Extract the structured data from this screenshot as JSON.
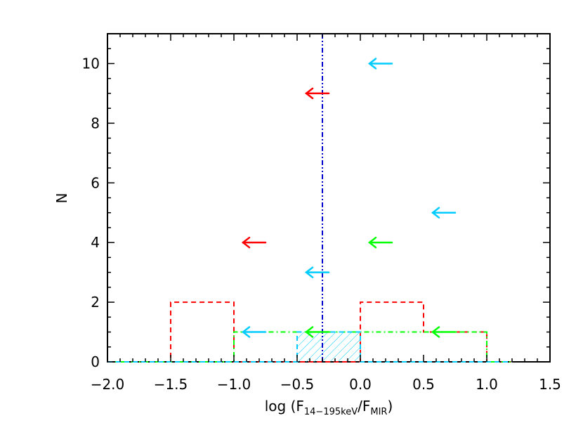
{
  "chart_data": {
    "type": "histogram",
    "title": "",
    "xlabel": {
      "prefix": "log (F",
      "numerator_sub": "14−195keV",
      "divider": "/F",
      "denominator_sub": "MIR",
      "suffix": ")"
    },
    "ylabel": "N",
    "xlim": [
      -2.0,
      1.5
    ],
    "ylim": [
      0,
      11
    ],
    "xticks": [
      -2.0,
      -1.5,
      -1.0,
      -0.5,
      0.0,
      0.5,
      1.0,
      1.5
    ],
    "xtick_labels": [
      "−2.0",
      "−1.5",
      "−1.0",
      "−0.5",
      "0.0",
      "0.5",
      "1.0",
      "1.5"
    ],
    "yticks": [
      0,
      2,
      4,
      6,
      8,
      10
    ],
    "ytick_labels": [
      "0",
      "2",
      "4",
      "6",
      "8",
      "10"
    ],
    "series": [
      {
        "name": "red-dashed",
        "color": "#ff0000",
        "style": "dashed",
        "steps": [
          [
            -2.0,
            -1.5,
            0
          ],
          [
            -1.5,
            -1.0,
            2
          ],
          [
            -1.0,
            -0.5,
            0
          ],
          [
            -0.5,
            0.0,
            0
          ],
          [
            0.0,
            0.5,
            2
          ],
          [
            0.5,
            1.0,
            1
          ],
          [
            1.0,
            1.2,
            0
          ]
        ]
      },
      {
        "name": "green-dashdot",
        "color": "#00ff00",
        "style": "dashdot",
        "steps": [
          [
            -2.0,
            -1.0,
            0
          ],
          [
            -1.0,
            -0.5,
            1
          ],
          [
            -0.5,
            0.0,
            1
          ],
          [
            0.0,
            0.5,
            1
          ],
          [
            0.5,
            1.0,
            1
          ],
          [
            1.0,
            1.2,
            0
          ]
        ]
      },
      {
        "name": "cyan-hatched",
        "color": "#00ccff",
        "style": "dashed",
        "steps": [
          [
            -2.0,
            -0.5,
            0
          ],
          [
            -0.5,
            0.0,
            1
          ],
          [
            0.0,
            1.2,
            0
          ]
        ]
      }
    ],
    "median_line": {
      "x": -0.3,
      "color": "#0000cc",
      "style": "dashdotdot"
    },
    "upper_limits": [
      {
        "x": 0.25,
        "y": 10,
        "color": "#00ccff"
      },
      {
        "x": -0.25,
        "y": 9,
        "color": "#ff0000"
      },
      {
        "x": 0.75,
        "y": 5,
        "color": "#00ccff"
      },
      {
        "x": -0.75,
        "y": 4,
        "color": "#ff0000"
      },
      {
        "x": 0.25,
        "y": 4,
        "color": "#00ff00"
      },
      {
        "x": -0.25,
        "y": 3,
        "color": "#00ccff"
      },
      {
        "x": -0.75,
        "y": 1,
        "color": "#00ccff"
      },
      {
        "x": -0.25,
        "y": 1,
        "color": "#00ff00"
      },
      {
        "x": 0.75,
        "y": 1,
        "color": "#00ff00"
      }
    ]
  }
}
